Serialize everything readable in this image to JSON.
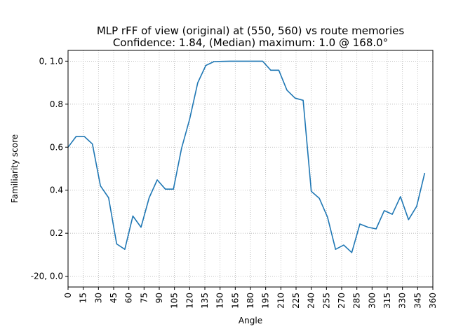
{
  "chart_data": {
    "type": "line",
    "title_line1": "MLP rFF of view (original) at (550, 560) vs route memories",
    "title_line2": "Confidence: 1.84, (Median) maximum: 1.0 @ 168.0°",
    "xlabel": "Angle",
    "ylabel": "Familiarity score",
    "xlim": [
      0,
      360
    ],
    "ylim": [
      -0.05,
      1.05
    ],
    "x_ticks": [
      0,
      15,
      30,
      45,
      60,
      75,
      90,
      105,
      120,
      135,
      150,
      165,
      180,
      195,
      210,
      225,
      240,
      255,
      270,
      285,
      300,
      315,
      330,
      345,
      360
    ],
    "x_tick_labels": [
      "0",
      "15",
      "30",
      "45",
      "60",
      "75",
      "90",
      "105",
      "120",
      "135",
      "150",
      "165",
      "180",
      "195",
      "210",
      "225",
      "240",
      "255",
      "270",
      "285",
      "300",
      "315",
      "330",
      "345",
      "360"
    ],
    "y_ticks": [
      0.0,
      0.2,
      0.4,
      0.6,
      0.8,
      1.0
    ],
    "y_tick_labels": [
      "-20, 0.0",
      "0.2",
      "0.4",
      "0.6",
      "0.8",
      "0, 1.0"
    ],
    "grid": true,
    "line_color": "#1f77b4",
    "series": [
      {
        "x": [
          0,
          8,
          16,
          24,
          32,
          40,
          48,
          56,
          64,
          72,
          80,
          88,
          96,
          104,
          112,
          120,
          128,
          136,
          144,
          152,
          160,
          168,
          176,
          184,
          192,
          200,
          208,
          216,
          224,
          232,
          240,
          248,
          256,
          264,
          272,
          280,
          288,
          296,
          304,
          312,
          320,
          328,
          336,
          344,
          352
        ],
        "y": [
          0.6,
          0.65,
          0.65,
          0.615,
          0.42,
          0.365,
          0.15,
          0.125,
          0.28,
          0.228,
          0.365,
          0.448,
          0.405,
          0.405,
          0.595,
          0.73,
          0.9,
          0.98,
          0.998,
          0.999,
          1.0,
          1.0,
          1.0,
          1.0,
          1.0,
          0.958,
          0.958,
          0.865,
          0.828,
          0.818,
          0.395,
          0.362,
          0.275,
          0.125,
          0.145,
          0.11,
          0.243,
          0.228,
          0.22,
          0.305,
          0.288,
          0.37,
          0.263,
          0.325,
          0.48
        ]
      }
    ]
  }
}
